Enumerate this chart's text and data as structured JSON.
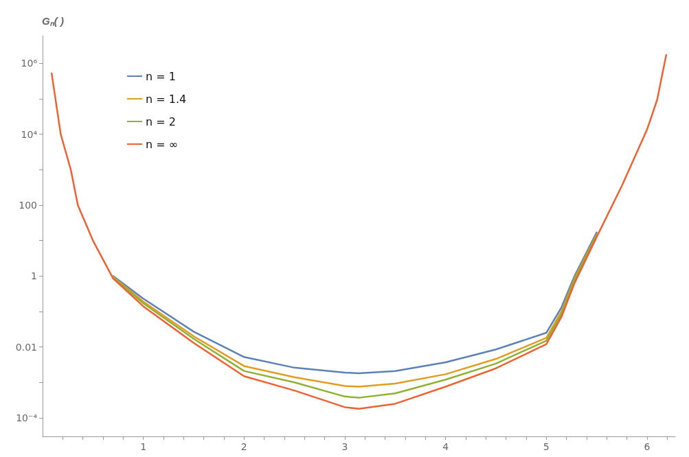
{
  "chart_data": {
    "type": "line",
    "ylabel": "Gₙ( )",
    "log": "y",
    "grid": false,
    "legend": "top left",
    "marker": "none",
    "line_style": "solid",
    "xlim": [
      0,
      6.28
    ],
    "ylim": [
      3e-05,
      6000000
    ],
    "xticks": [
      {
        "value": 0.2,
        "label": null
      },
      {
        "value": 0.4,
        "label": null
      },
      {
        "value": 0.6,
        "label": null
      },
      {
        "value": 0.8,
        "label": null
      },
      1,
      {
        "value": 1.2,
        "label": null
      },
      {
        "value": 1.4,
        "label": null
      },
      {
        "value": 1.6,
        "label": null
      },
      {
        "value": 1.8,
        "label": null
      },
      2,
      {
        "value": 2.2,
        "label": null
      },
      {
        "value": 2.4,
        "label": null
      },
      {
        "value": 2.6,
        "label": null
      },
      {
        "value": 2.8,
        "label": null
      },
      3,
      {
        "value": 3.2,
        "label": null
      },
      {
        "value": 3.4,
        "label": null
      },
      {
        "value": 3.6,
        "label": null
      },
      {
        "value": 3.8,
        "label": null
      },
      4,
      {
        "value": 4.2,
        "label": null
      },
      {
        "value": 4.4,
        "label": null
      },
      {
        "value": 4.6,
        "label": null
      },
      {
        "value": 4.8,
        "label": null
      },
      5,
      {
        "value": 5.2,
        "label": null
      },
      {
        "value": 5.4,
        "label": null
      },
      {
        "value": 5.6,
        "label": null
      },
      {
        "value": 5.8,
        "label": null
      },
      6,
      {
        "value": 6.2,
        "label": null
      }
    ],
    "yticks": [
      {
        "value": 0.0001,
        "label": "10⁻⁴"
      },
      {
        "value": 0.001,
        "label": null
      },
      0.01,
      {
        "value": 0.1,
        "label": null
      },
      1,
      {
        "value": 10,
        "label": null
      },
      100,
      {
        "value": 1000,
        "label": null
      },
      {
        "value": 10000,
        "label": "10⁴"
      },
      {
        "value": 100000,
        "label": null
      },
      {
        "value": 1000000,
        "label": "10⁶"
      }
    ],
    "x": [
      0.09,
      0.18,
      0.28,
      0.35,
      0.5,
      0.7,
      1,
      1.5,
      2,
      2.5,
      3,
      3.14,
      3.5,
      4,
      4.5,
      5,
      5.15,
      5.28,
      5.5,
      5.75,
      6,
      6.1,
      6.19
    ],
    "series": [
      {
        "name": "n = 1",
        "color": "#5e81b5",
        "values": [
          null,
          null,
          null,
          null,
          null,
          1,
          0.23,
          0.027,
          0.0052,
          0.0026,
          0.0019,
          0.0018,
          0.0021,
          0.0037,
          0.0085,
          0.025,
          0.13,
          1,
          17,
          null,
          null,
          null,
          null
        ]
      },
      {
        "name": "n = 1.4",
        "color": "#e19c24",
        "values": [
          null,
          null,
          null,
          null,
          null,
          0.95,
          0.19,
          0.02,
          0.0029,
          0.0014,
          0.00079,
          0.00076,
          0.00093,
          0.0017,
          0.0046,
          0.018,
          0.1,
          0.85,
          15,
          null,
          null,
          null,
          null
        ]
      },
      {
        "name": "n = 2",
        "color": "#8fb032",
        "values": [
          null,
          null,
          null,
          null,
          null,
          0.9,
          0.17,
          0.017,
          0.0021,
          0.001,
          0.0004,
          0.00037,
          0.00049,
          0.0012,
          0.0034,
          0.015,
          0.085,
          0.76,
          14,
          null,
          null,
          null,
          null
        ]
      },
      {
        "name": "n = ∞",
        "color": "#eb6235",
        "values": [
          520000,
          10000,
          1000,
          100,
          10,
          0.85,
          0.14,
          0.013,
          0.0015,
          0.00059,
          0.0002,
          0.00018,
          0.00025,
          0.00076,
          0.0025,
          0.012,
          0.07,
          0.63,
          12.6,
          350,
          13500,
          93000,
          1700000
        ]
      }
    ]
  }
}
